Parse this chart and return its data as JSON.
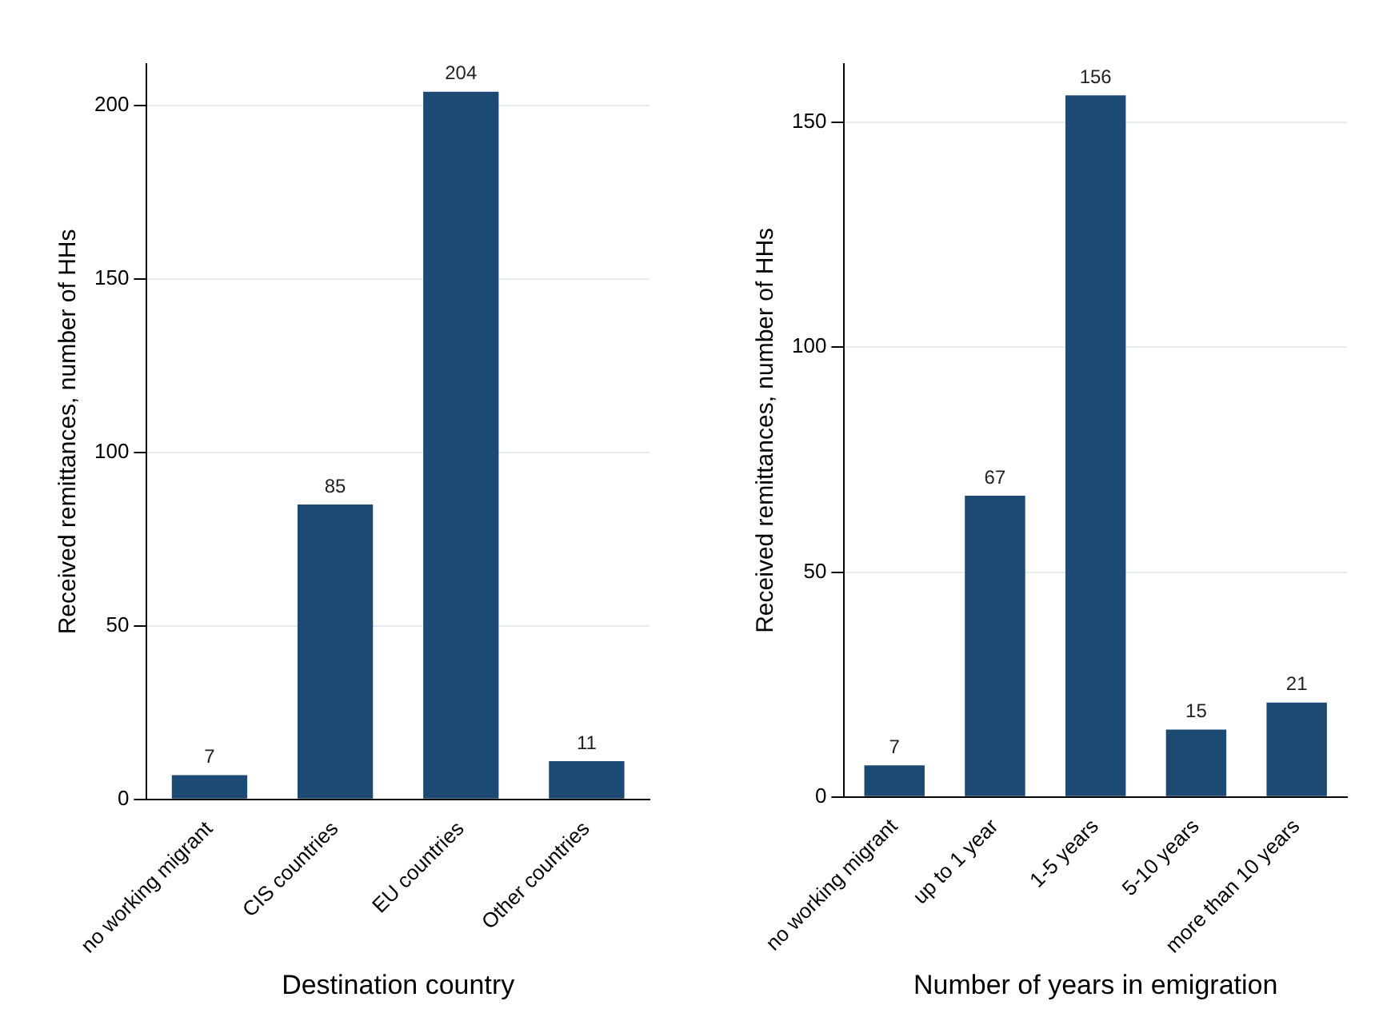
{
  "chart_data": [
    {
      "type": "bar",
      "categories": [
        "no working migrant",
        "CIS countries",
        "EU countries",
        "Other countries"
      ],
      "values": [
        7,
        85,
        204,
        11
      ],
      "color": "#1c4a72",
      "xlabel": "Destination country",
      "ylabel": "Received remittances, number of HHs",
      "ylim": [
        0,
        212
      ],
      "yticks": [
        0,
        50,
        100,
        150,
        200
      ],
      "grid": "y",
      "data_labels": true
    },
    {
      "type": "bar",
      "categories": [
        "no working migrant",
        "up to 1 year",
        "1-5 years",
        "5-10 years",
        "more than 10 years"
      ],
      "values": [
        7,
        67,
        156,
        15,
        21
      ],
      "color": "#1c4a72",
      "xlabel": "Number of years in emigration",
      "ylabel": "Received remittances, number of HHs",
      "ylim": [
        0,
        163
      ],
      "yticks": [
        0,
        50,
        100,
        150
      ],
      "grid": "y",
      "data_labels": true
    }
  ]
}
